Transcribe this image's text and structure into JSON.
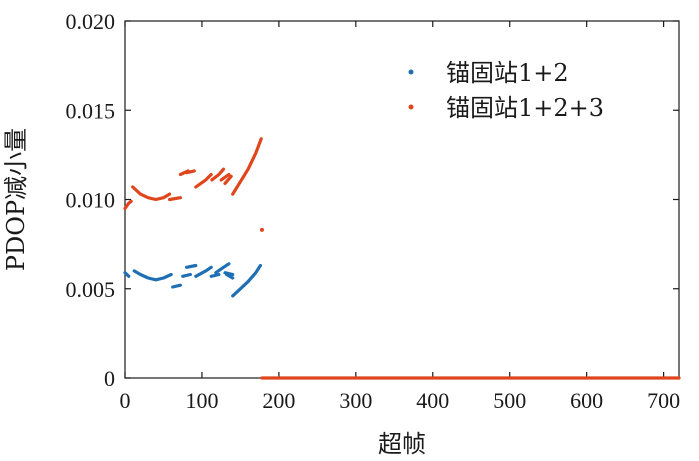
{
  "chart_data": {
    "type": "scatter",
    "xlabel": "超帧",
    "ylabel": "PDOP减小量",
    "xlim": [
      0,
      720
    ],
    "ylim": [
      0,
      0.02
    ],
    "xticks": [
      0,
      100,
      200,
      300,
      400,
      500,
      600,
      700
    ],
    "yticks": [
      0,
      0.005,
      0.01,
      0.015,
      0.02
    ],
    "ytick_labels": [
      "0",
      "0.005",
      "0.010",
      "0.015",
      "0.020"
    ],
    "grid": false,
    "legend_position": "top-right",
    "series": [
      {
        "name": "锚固站1+2",
        "color": "#1f6fb5",
        "segments": [
          [
            [
              0,
              0.0059
            ],
            [
              5,
              0.0057
            ]
          ],
          [
            [
              12,
              0.006
            ],
            [
              20,
              0.0058
            ],
            [
              30,
              0.0056
            ],
            [
              40,
              0.0055
            ],
            [
              50,
              0.0056
            ],
            [
              60,
              0.0058
            ]
          ],
          [
            [
              62,
              0.0051
            ],
            [
              72,
              0.0052
            ]
          ],
          [
            [
              75,
              0.0057
            ],
            [
              85,
              0.0058
            ]
          ],
          [
            [
              80,
              0.0062
            ],
            [
              92,
              0.0063
            ]
          ],
          [
            [
              92,
              0.0057
            ],
            [
              105,
              0.006
            ],
            [
              112,
              0.0062
            ]
          ],
          [
            [
              112,
              0.0057
            ],
            [
              122,
              0.0058
            ]
          ],
          [
            [
              118,
              0.0059
            ],
            [
              128,
              0.0062
            ],
            [
              135,
              0.0064
            ]
          ],
          [
            [
              130,
              0.0059
            ],
            [
              140,
              0.0058
            ]
          ],
          [
            [
              132,
              0.0058
            ],
            [
              140,
              0.0056
            ]
          ],
          [
            [
              140,
              0.0046
            ],
            [
              150,
              0.005
            ],
            [
              160,
              0.0054
            ],
            [
              170,
              0.0059
            ],
            [
              176,
              0.0063
            ]
          ]
        ],
        "points": []
      },
      {
        "name": "锚固站1+2+3",
        "color": "#e0461c",
        "segments": [
          [
            [
              0,
              0.0095
            ],
            [
              5,
              0.0098
            ],
            [
              8,
              0.0099
            ]
          ],
          [
            [
              10,
              0.0107
            ],
            [
              20,
              0.0103
            ],
            [
              30,
              0.0101
            ],
            [
              40,
              0.01
            ],
            [
              50,
              0.0101
            ],
            [
              58,
              0.0103
            ]
          ],
          [
            [
              58,
              0.01
            ],
            [
              72,
              0.0101
            ]
          ],
          [
            [
              72,
              0.0114
            ],
            [
              82,
              0.0116
            ]
          ],
          [
            [
              80,
              0.0115
            ],
            [
              90,
              0.0116
            ]
          ],
          [
            [
              92,
              0.0107
            ],
            [
              105,
              0.0111
            ],
            [
              112,
              0.0114
            ]
          ],
          [
            [
              113,
              0.0111
            ],
            [
              122,
              0.0114
            ],
            [
              128,
              0.0117
            ]
          ],
          [
            [
              125,
              0.0111
            ],
            [
              135,
              0.0114
            ]
          ],
          [
            [
              130,
              0.0109
            ],
            [
              138,
              0.0113
            ]
          ],
          [
            [
              140,
              0.0103
            ],
            [
              150,
              0.011
            ],
            [
              160,
              0.0117
            ],
            [
              170,
              0.0126
            ],
            [
              177,
              0.0134
            ]
          ],
          [
            [
              178,
              0
            ],
            [
              720,
              0
            ]
          ]
        ],
        "points": [
          [
            178,
            0.0083
          ]
        ]
      }
    ]
  }
}
